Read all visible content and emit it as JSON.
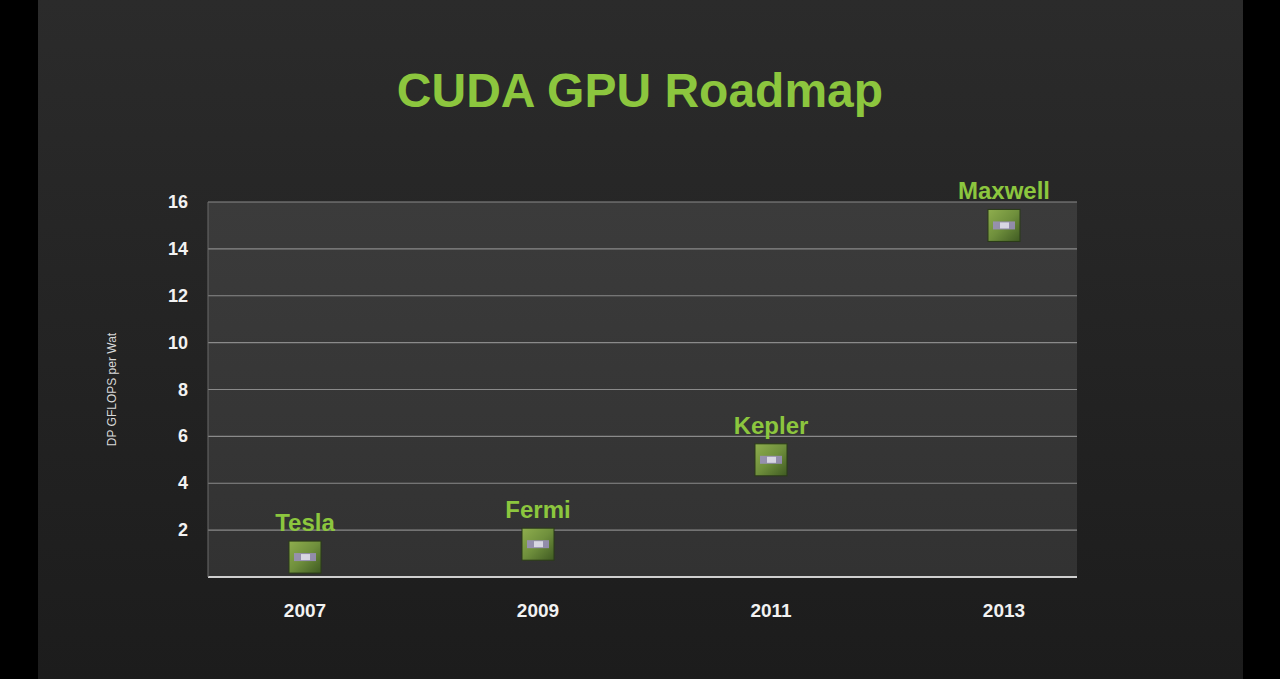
{
  "chart_data": {
    "type": "scatter",
    "title": "CUDA GPU Roadmap",
    "y_label": "DP GFLOPS per Wat",
    "categories": [
      "2007",
      "2009",
      "2011",
      "2013"
    ],
    "values": [
      0.85,
      1.4,
      5,
      15
    ],
    "annotations": [
      "Tesla",
      "Fermi",
      "Kepler",
      "Maxwell"
    ],
    "color": "#6f8f3c",
    "marker": "square",
    "ylim": [
      0,
      16
    ],
    "yticks": [
      2,
      4,
      6,
      8,
      10,
      12,
      14,
      16
    ],
    "grid": true
  }
}
